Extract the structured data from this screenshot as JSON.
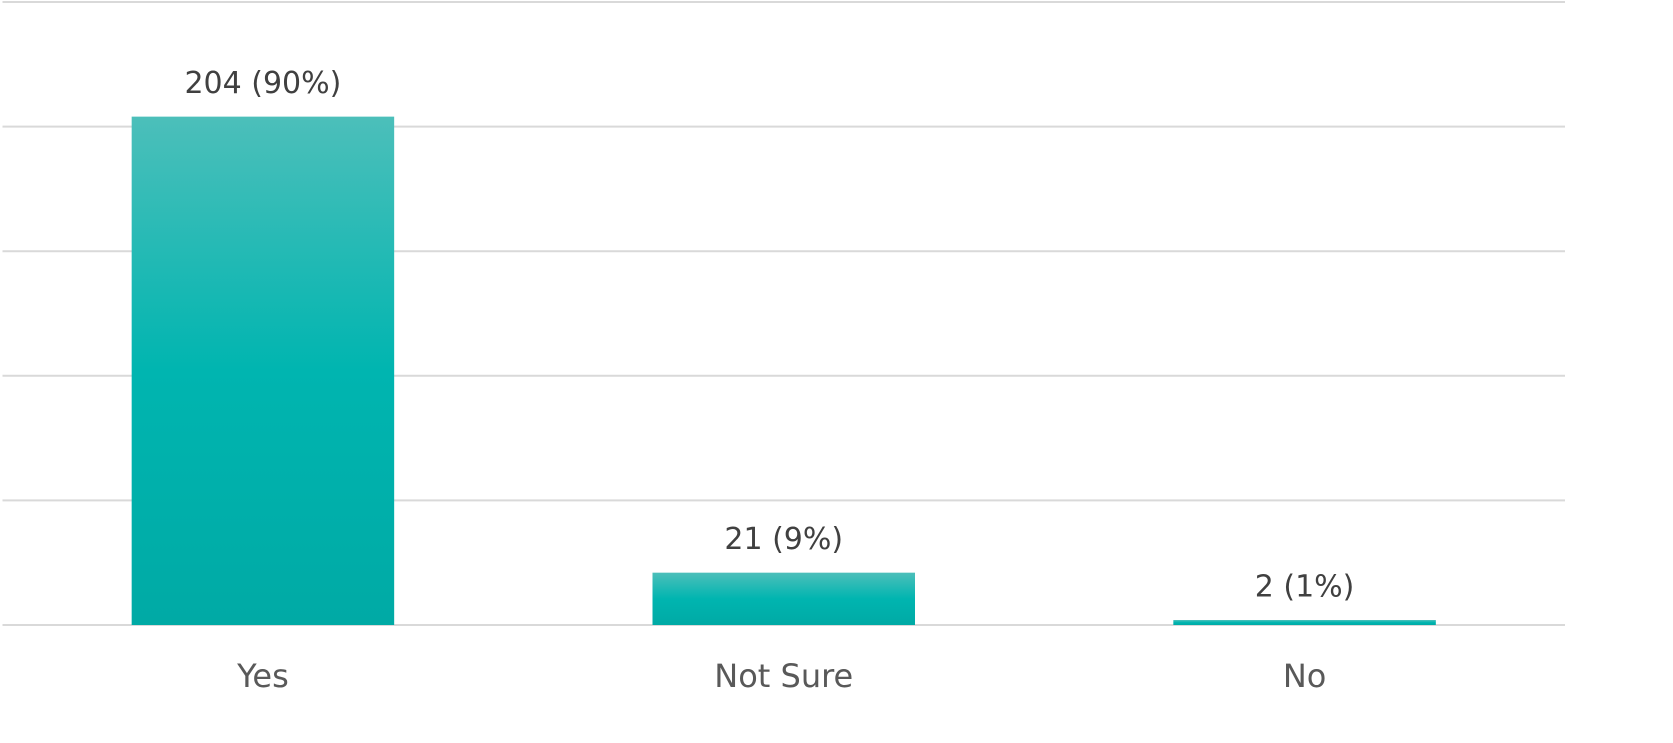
{
  "chart_data": {
    "type": "bar",
    "categories": [
      "Yes",
      "Not Sure",
      "No"
    ],
    "values": [
      204,
      21,
      2
    ],
    "value_labels": [
      "204 (90%)",
      "21 (9%)",
      "2 (1%)"
    ],
    "color": "#00b5b0",
    "ylim": [
      0,
      250
    ],
    "yticks": [
      0,
      50,
      100,
      150,
      200,
      250
    ],
    "grid": true
  }
}
